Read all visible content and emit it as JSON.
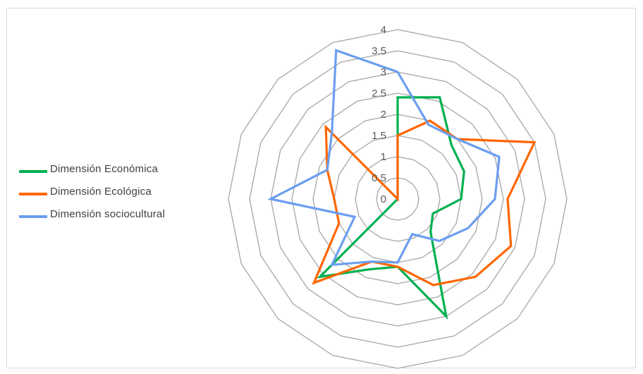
{
  "chart_data": {
    "type": "radar",
    "title": "",
    "axis_count": 16,
    "rlim": [
      0,
      4
    ],
    "r_ticks": [
      "0",
      "0.5",
      "1",
      "1.5",
      "2",
      "2.5",
      "3",
      "3.5",
      "4"
    ],
    "grid": true,
    "legend_position": "left",
    "series": [
      {
        "name": "Dimensión Económica",
        "color": "#00b050",
        "values": [
          2.4,
          2.6,
          1.8,
          1.7,
          1.5,
          0.9,
          1.1,
          3.0,
          1.6,
          1.8,
          2.6,
          0,
          0,
          0,
          0,
          0
        ]
      },
      {
        "name": "Dimensión  Ecológica",
        "color": "#ff6600",
        "values": [
          1.5,
          2.0,
          2.0,
          3.5,
          2.6,
          2.9,
          2.6,
          2.2,
          1.6,
          1.6,
          2.8,
          1.5,
          1.5,
          1.8,
          2.4,
          0
        ]
      },
      {
        "name": "Dimensión sociocultural",
        "color": "#6b9ef0",
        "values": [
          3.0,
          1.9,
          2.0,
          2.6,
          2.3,
          1.8,
          1.4,
          0.9,
          1.5,
          1.6,
          2.2,
          1.1,
          3.0,
          1.8,
          2.2,
          3.8
        ]
      }
    ]
  }
}
